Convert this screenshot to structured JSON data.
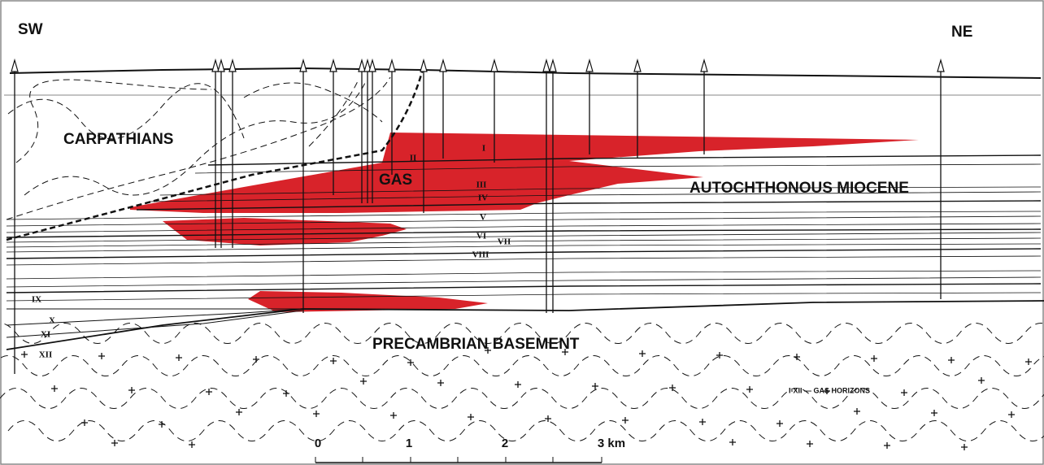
{
  "direction_left": "SW",
  "direction_right": "NE",
  "units": {
    "carpathians": "CARPATHIANS",
    "gas": "GAS",
    "miocene": "AUTOCHTHONOUS MIOCENE",
    "basement": "PRECAMBRIAN BASEMENT"
  },
  "horizons": [
    "I",
    "II",
    "III",
    "IV",
    "V",
    "VI",
    "VII",
    "VIII",
    "IX",
    "X",
    "XI",
    "XII"
  ],
  "legend": "I-XII — GAS HORIZONS",
  "scale": {
    "labels": [
      "0",
      "1",
      "2",
      "3 km"
    ]
  }
}
